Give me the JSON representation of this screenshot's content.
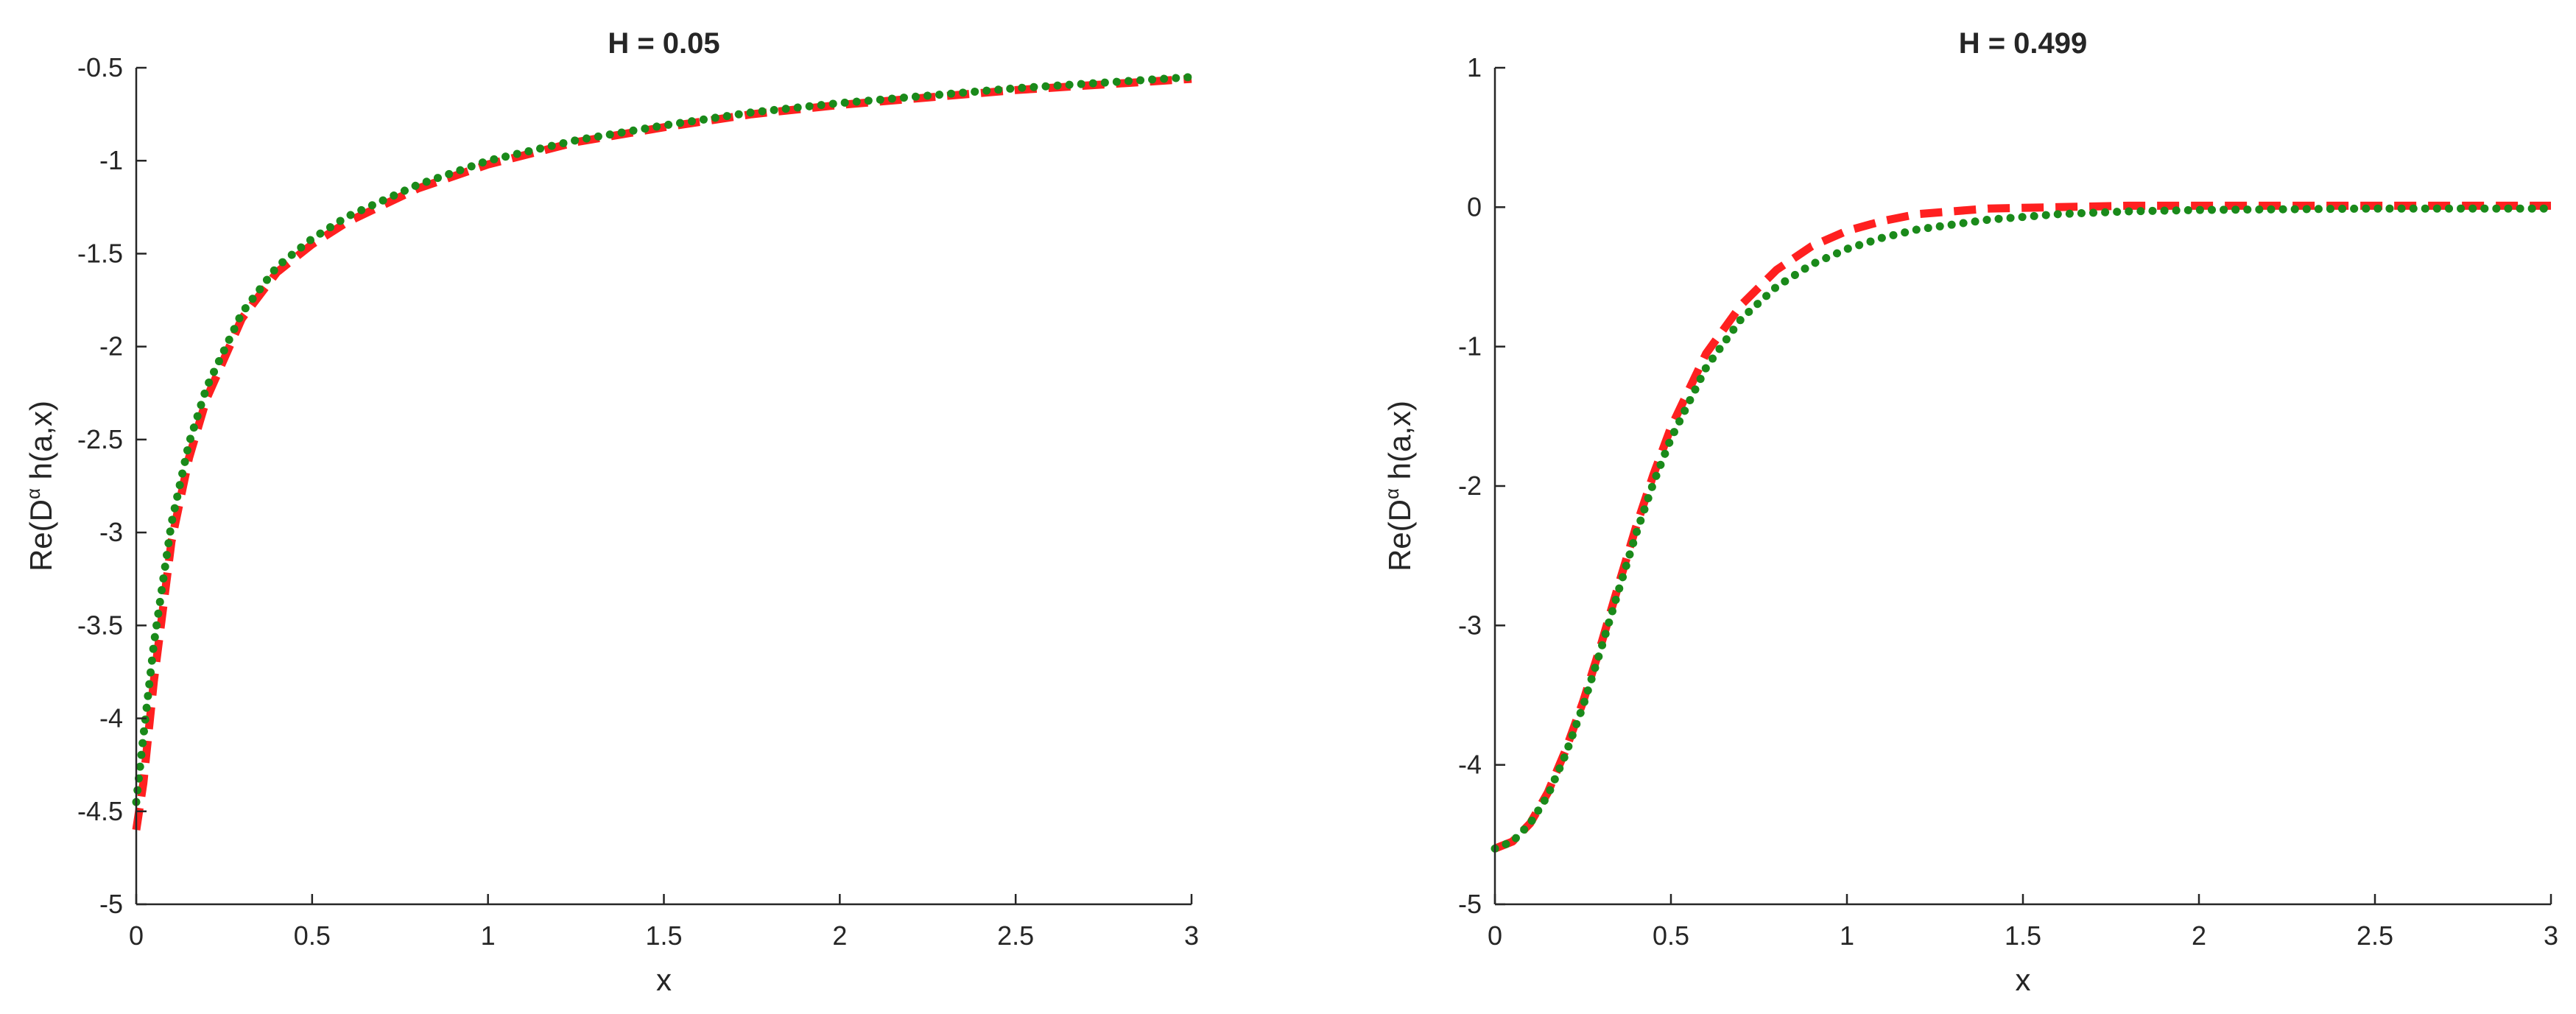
{
  "chart_data": [
    {
      "type": "line",
      "title": "H = 0.05",
      "xlabel": "x",
      "ylabel": {
        "pre": "Re(D",
        "sup": "α",
        "post": " h(a,x)"
      },
      "xlim": [
        0,
        3
      ],
      "ylim": [
        -5,
        -0.5
      ],
      "xticks": [
        0,
        0.5,
        1,
        1.5,
        2,
        2.5,
        3
      ],
      "xtick_labels": [
        "0",
        "0.5",
        "1",
        "1.5",
        "2",
        "2.5",
        "3"
      ],
      "yticks": [
        -5,
        -4.5,
        -4,
        -3.5,
        -3,
        -2.5,
        -2,
        -1.5,
        -1,
        -0.5
      ],
      "ytick_labels": [
        "-5",
        "-4.5",
        "-4",
        "-3.5",
        "-3",
        "-2.5",
        "-2",
        "-1.5",
        "-1",
        "-0.5"
      ],
      "grid": false,
      "series": [
        {
          "color": "#ff2020",
          "style": "dashed",
          "x": [
            0,
            0.02,
            0.05,
            0.1,
            0.15,
            0.2,
            0.3,
            0.4,
            0.5,
            0.6,
            0.8,
            1.0,
            1.25,
            1.5,
            1.75,
            2.0,
            2.25,
            2.5,
            2.75,
            3.0
          ],
          "y": [
            -4.6,
            -4.35,
            -3.8,
            -3.05,
            -2.6,
            -2.28,
            -1.85,
            -1.6,
            -1.45,
            -1.33,
            -1.15,
            -1.02,
            -0.9,
            -0.82,
            -0.75,
            -0.7,
            -0.66,
            -0.62,
            -0.59,
            -0.56
          ]
        },
        {
          "color": "#1a8a1a",
          "style": "dotted",
          "x": [
            0,
            0.02,
            0.05,
            0.1,
            0.15,
            0.2,
            0.3,
            0.4,
            0.5,
            0.6,
            0.8,
            1.0,
            1.25,
            1.5,
            1.75,
            2.0,
            2.25,
            2.5,
            2.75,
            3.0
          ],
          "y": [
            -4.45,
            -4.1,
            -3.6,
            -2.95,
            -2.52,
            -2.22,
            -1.82,
            -1.57,
            -1.42,
            -1.3,
            -1.13,
            -1.0,
            -0.89,
            -0.81,
            -0.74,
            -0.69,
            -0.65,
            -0.61,
            -0.58,
            -0.55
          ]
        }
      ]
    },
    {
      "type": "line",
      "title": "H = 0.499",
      "xlabel": "x",
      "ylabel": {
        "pre": "Re(D",
        "sup": "α",
        "post": " h(a,x)"
      },
      "xlim": [
        0,
        3
      ],
      "ylim": [
        -5,
        1
      ],
      "xticks": [
        0,
        0.5,
        1,
        1.5,
        2,
        2.5,
        3
      ],
      "xtick_labels": [
        "0",
        "0.5",
        "1",
        "1.5",
        "2",
        "2.5",
        "3"
      ],
      "yticks": [
        -5,
        -4,
        -3,
        -2,
        -1,
        0,
        1
      ],
      "ytick_labels": [
        "-5",
        "-4",
        "-3",
        "-2",
        "-1",
        "0",
        "1"
      ],
      "grid": false,
      "series": [
        {
          "color": "#ff2020",
          "style": "dashed",
          "x": [
            0,
            0.05,
            0.1,
            0.15,
            0.2,
            0.25,
            0.3,
            0.35,
            0.4,
            0.45,
            0.5,
            0.6,
            0.7,
            0.8,
            0.9,
            1.0,
            1.1,
            1.2,
            1.4,
            1.6,
            1.8,
            2.0,
            2.5,
            3.0
          ],
          "y": [
            -4.6,
            -4.55,
            -4.42,
            -4.2,
            -3.9,
            -3.55,
            -3.15,
            -2.72,
            -2.3,
            -1.92,
            -1.58,
            -1.05,
            -0.7,
            -0.45,
            -0.28,
            -0.17,
            -0.1,
            -0.05,
            -0.01,
            0.0,
            0.01,
            0.01,
            0.01,
            0.01
          ]
        },
        {
          "color": "#1a8a1a",
          "style": "dotted",
          "x": [
            0,
            0.05,
            0.1,
            0.15,
            0.2,
            0.25,
            0.3,
            0.35,
            0.4,
            0.45,
            0.5,
            0.6,
            0.7,
            0.8,
            0.9,
            1.0,
            1.1,
            1.2,
            1.4,
            1.6,
            1.8,
            2.0,
            2.5,
            3.0
          ],
          "y": [
            -4.6,
            -4.55,
            -4.42,
            -4.22,
            -3.93,
            -3.58,
            -3.18,
            -2.76,
            -2.35,
            -1.98,
            -1.66,
            -1.15,
            -0.8,
            -0.57,
            -0.41,
            -0.3,
            -0.22,
            -0.16,
            -0.09,
            -0.05,
            -0.03,
            -0.02,
            -0.01,
            -0.01
          ]
        }
      ]
    }
  ]
}
